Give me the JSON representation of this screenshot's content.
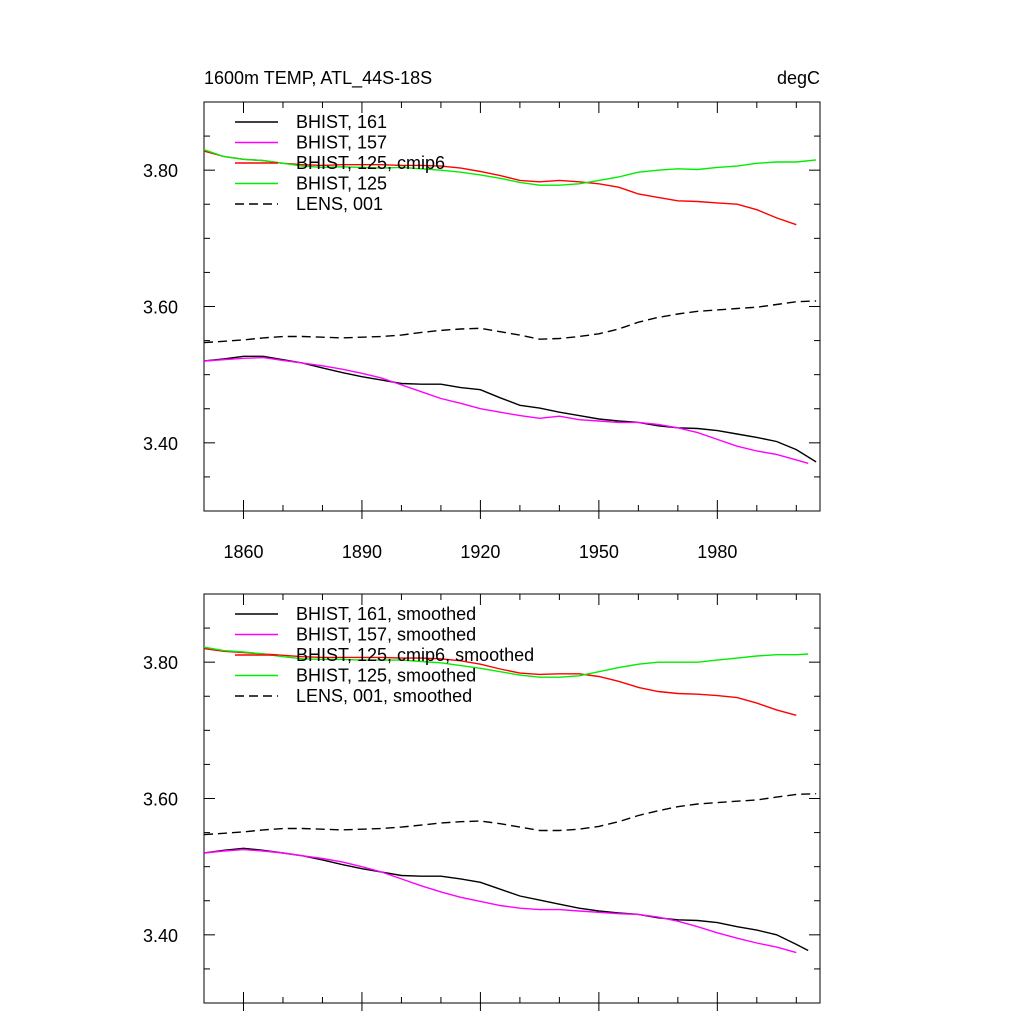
{
  "page": {
    "title_left": "1600m TEMP, ATL_44S-18S",
    "title_right": "degC"
  },
  "chart_data": [
    {
      "type": "line",
      "title": "1600m TEMP, ATL_44S-18S",
      "units": "degC",
      "xlim": [
        1850,
        2006
      ],
      "ylim": [
        3.3,
        3.9
      ],
      "xticks": [
        "1860",
        "1890",
        "1920",
        "1950",
        "1980"
      ],
      "yticks": [
        "3.40",
        "3.60",
        "3.80"
      ],
      "legend_position": "top-left",
      "grid": false,
      "series": [
        {
          "name": "BHIST, 161",
          "color": "#000000",
          "dash": "solid",
          "x": [
            1850,
            1855,
            1860,
            1865,
            1870,
            1875,
            1880,
            1885,
            1890,
            1895,
            1900,
            1905,
            1910,
            1915,
            1920,
            1925,
            1930,
            1935,
            1940,
            1945,
            1950,
            1955,
            1960,
            1965,
            1970,
            1975,
            1980,
            1985,
            1990,
            1995,
            2000,
            2005
          ],
          "y": [
            3.52,
            3.523,
            3.527,
            3.527,
            3.522,
            3.517,
            3.51,
            3.503,
            3.497,
            3.492,
            3.487,
            3.486,
            3.486,
            3.481,
            3.478,
            3.466,
            3.455,
            3.451,
            3.445,
            3.44,
            3.435,
            3.432,
            3.43,
            3.425,
            3.422,
            3.421,
            3.418,
            3.413,
            3.408,
            3.402,
            3.39,
            3.372
          ]
        },
        {
          "name": "BHIST, 157",
          "color": "#ff00ff",
          "dash": "solid",
          "x": [
            1850,
            1855,
            1860,
            1865,
            1870,
            1875,
            1880,
            1885,
            1890,
            1895,
            1900,
            1905,
            1910,
            1915,
            1920,
            1925,
            1930,
            1935,
            1940,
            1945,
            1950,
            1955,
            1960,
            1965,
            1970,
            1975,
            1980,
            1985,
            1990,
            1995,
            2000,
            2003
          ],
          "y": [
            3.52,
            3.522,
            3.524,
            3.525,
            3.521,
            3.517,
            3.513,
            3.508,
            3.502,
            3.495,
            3.485,
            3.475,
            3.465,
            3.458,
            3.45,
            3.445,
            3.44,
            3.436,
            3.439,
            3.434,
            3.432,
            3.43,
            3.43,
            3.427,
            3.422,
            3.415,
            3.405,
            3.395,
            3.388,
            3.383,
            3.375,
            3.37
          ]
        },
        {
          "name": "BHIST, 125, cmip6",
          "color": "#ff0000",
          "dash": "solid",
          "x": [
            1850,
            1855,
            1860,
            1865,
            1870,
            1875,
            1880,
            1885,
            1890,
            1895,
            1900,
            1905,
            1910,
            1915,
            1920,
            1925,
            1930,
            1935,
            1940,
            1945,
            1950,
            1955,
            1960,
            1965,
            1970,
            1975,
            1980,
            1985,
            1990,
            1995,
            2000
          ],
          "y": [
            3.828,
            3.82,
            3.816,
            3.814,
            3.81,
            3.808,
            3.807,
            3.808,
            3.808,
            3.808,
            3.807,
            3.807,
            3.806,
            3.803,
            3.798,
            3.792,
            3.785,
            3.783,
            3.785,
            3.783,
            3.78,
            3.775,
            3.765,
            3.76,
            3.755,
            3.754,
            3.752,
            3.75,
            3.742,
            3.73,
            3.72
          ]
        },
        {
          "name": "BHIST, 125",
          "color": "#00ee00",
          "dash": "solid",
          "x": [
            1850,
            1855,
            1860,
            1865,
            1870,
            1875,
            1880,
            1885,
            1890,
            1895,
            1900,
            1905,
            1910,
            1915,
            1920,
            1925,
            1930,
            1935,
            1940,
            1945,
            1950,
            1955,
            1960,
            1965,
            1970,
            1975,
            1980,
            1985,
            1990,
            1995,
            2000,
            2005
          ],
          "y": [
            3.83,
            3.82,
            3.816,
            3.814,
            3.81,
            3.806,
            3.804,
            3.805,
            3.804,
            3.803,
            3.804,
            3.802,
            3.8,
            3.797,
            3.793,
            3.788,
            3.782,
            3.778,
            3.778,
            3.78,
            3.785,
            3.79,
            3.797,
            3.8,
            3.802,
            3.801,
            3.804,
            3.806,
            3.81,
            3.812,
            3.812,
            3.815
          ]
        },
        {
          "name": "LENS, 001",
          "color": "#000000",
          "dash": "dashed",
          "x": [
            1850,
            1855,
            1860,
            1865,
            1870,
            1875,
            1880,
            1885,
            1890,
            1895,
            1900,
            1905,
            1910,
            1915,
            1920,
            1925,
            1930,
            1935,
            1940,
            1945,
            1950,
            1955,
            1960,
            1965,
            1970,
            1975,
            1980,
            1985,
            1990,
            1995,
            2000,
            2005
          ],
          "y": [
            3.547,
            3.549,
            3.551,
            3.554,
            3.556,
            3.556,
            3.555,
            3.554,
            3.555,
            3.556,
            3.558,
            3.562,
            3.565,
            3.567,
            3.568,
            3.563,
            3.558,
            3.552,
            3.553,
            3.556,
            3.56,
            3.567,
            3.577,
            3.584,
            3.589,
            3.593,
            3.595,
            3.597,
            3.599,
            3.603,
            3.607,
            3.608
          ]
        }
      ]
    },
    {
      "type": "line",
      "title": "",
      "xlim": [
        1850,
        2006
      ],
      "ylim": [
        3.3,
        3.9
      ],
      "yticks": [
        "3.40",
        "3.60",
        "3.80"
      ],
      "legend_position": "top-left",
      "grid": false,
      "series": [
        {
          "name": "BHIST, 161, smoothed",
          "color": "#000000",
          "dash": "solid",
          "x": [
            1850,
            1855,
            1860,
            1865,
            1870,
            1875,
            1880,
            1885,
            1890,
            1895,
            1900,
            1905,
            1910,
            1915,
            1920,
            1925,
            1930,
            1935,
            1940,
            1945,
            1950,
            1955,
            1960,
            1965,
            1970,
            1975,
            1980,
            1985,
            1990,
            1995,
            2000,
            2003
          ],
          "y": [
            3.52,
            3.524,
            3.527,
            3.524,
            3.52,
            3.516,
            3.51,
            3.503,
            3.497,
            3.492,
            3.487,
            3.486,
            3.486,
            3.482,
            3.477,
            3.467,
            3.457,
            3.451,
            3.445,
            3.439,
            3.435,
            3.432,
            3.43,
            3.425,
            3.422,
            3.421,
            3.418,
            3.412,
            3.407,
            3.4,
            3.386,
            3.377
          ]
        },
        {
          "name": "BHIST, 157, smoothed",
          "color": "#ff00ff",
          "dash": "solid",
          "x": [
            1850,
            1855,
            1860,
            1865,
            1870,
            1875,
            1880,
            1885,
            1890,
            1895,
            1900,
            1905,
            1910,
            1915,
            1920,
            1925,
            1930,
            1935,
            1940,
            1945,
            1950,
            1955,
            1960,
            1965,
            1970,
            1975,
            1980,
            1985,
            1990,
            1995,
            2000
          ],
          "y": [
            3.52,
            3.523,
            3.525,
            3.523,
            3.52,
            3.516,
            3.512,
            3.507,
            3.5,
            3.492,
            3.482,
            3.472,
            3.463,
            3.455,
            3.449,
            3.443,
            3.439,
            3.437,
            3.437,
            3.435,
            3.433,
            3.431,
            3.43,
            3.426,
            3.42,
            3.412,
            3.403,
            3.395,
            3.388,
            3.382,
            3.374
          ]
        },
        {
          "name": "BHIST, 125, cmip6, smoothed",
          "color": "#ff0000",
          "dash": "solid",
          "x": [
            1850,
            1855,
            1860,
            1865,
            1870,
            1875,
            1880,
            1885,
            1890,
            1895,
            1900,
            1905,
            1910,
            1915,
            1920,
            1925,
            1930,
            1935,
            1940,
            1945,
            1950,
            1955,
            1960,
            1965,
            1970,
            1975,
            1980,
            1985,
            1990,
            1995,
            2000
          ],
          "y": [
            3.82,
            3.816,
            3.814,
            3.812,
            3.81,
            3.808,
            3.807,
            3.807,
            3.807,
            3.807,
            3.806,
            3.806,
            3.805,
            3.802,
            3.797,
            3.79,
            3.784,
            3.782,
            3.783,
            3.783,
            3.779,
            3.772,
            3.763,
            3.757,
            3.754,
            3.753,
            3.751,
            3.748,
            3.74,
            3.73,
            3.722
          ]
        },
        {
          "name": "BHIST, 125, smoothed",
          "color": "#00ee00",
          "dash": "solid",
          "x": [
            1850,
            1855,
            1860,
            1865,
            1870,
            1875,
            1880,
            1885,
            1890,
            1895,
            1900,
            1905,
            1910,
            1915,
            1920,
            1925,
            1930,
            1935,
            1940,
            1945,
            1950,
            1955,
            1960,
            1965,
            1970,
            1975,
            1980,
            1985,
            1990,
            1995,
            2000,
            2003
          ],
          "y": [
            3.822,
            3.817,
            3.815,
            3.812,
            3.808,
            3.805,
            3.804,
            3.804,
            3.803,
            3.803,
            3.803,
            3.801,
            3.799,
            3.795,
            3.791,
            3.786,
            3.781,
            3.778,
            3.778,
            3.78,
            3.786,
            3.792,
            3.797,
            3.8,
            3.8,
            3.8,
            3.803,
            3.806,
            3.809,
            3.811,
            3.811,
            3.812
          ]
        },
        {
          "name": "LENS, 001, smoothed",
          "color": "#000000",
          "dash": "dashed",
          "x": [
            1850,
            1855,
            1860,
            1865,
            1870,
            1875,
            1880,
            1885,
            1890,
            1895,
            1900,
            1905,
            1910,
            1915,
            1920,
            1925,
            1930,
            1935,
            1940,
            1945,
            1950,
            1955,
            1960,
            1965,
            1970,
            1975,
            1980,
            1985,
            1990,
            1995,
            2000,
            2005
          ],
          "y": [
            3.547,
            3.549,
            3.551,
            3.554,
            3.556,
            3.556,
            3.555,
            3.554,
            3.555,
            3.556,
            3.558,
            3.561,
            3.564,
            3.566,
            3.567,
            3.563,
            3.558,
            3.553,
            3.553,
            3.555,
            3.559,
            3.566,
            3.575,
            3.582,
            3.588,
            3.592,
            3.594,
            3.596,
            3.598,
            3.602,
            3.606,
            3.607
          ]
        }
      ]
    }
  ]
}
